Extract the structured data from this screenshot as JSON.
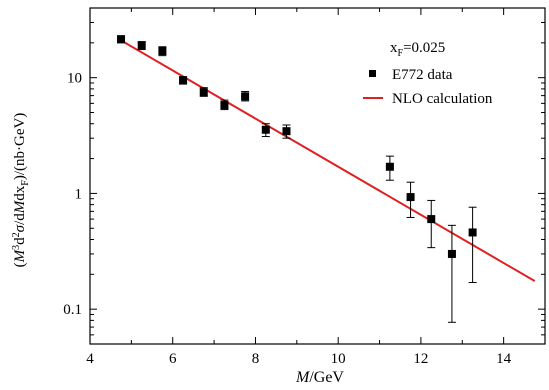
{
  "chart_data": {
    "type": "scatter",
    "title": "",
    "xlabel": "M/GeV",
    "ylabel": "(M³d²σ/dMdx_F)/(nb·GeV)",
    "xlim": [
      4,
      15
    ],
    "ylim": [
      0.05,
      40
    ],
    "yscale": "log",
    "x_ticks": [
      "4",
      "6",
      "8",
      "10",
      "12",
      "14"
    ],
    "y_ticks": [
      "0.1",
      "1",
      "10"
    ],
    "annotation": "x_F=0.025",
    "legend_position": "top-right",
    "series": [
      {
        "name": "E772 data",
        "kind": "points",
        "color": "#000000",
        "points": [
          {
            "x": 4.75,
            "y": 21.5,
            "ylo": 20.0,
            "yhi": 23.0
          },
          {
            "x": 5.25,
            "y": 19.0,
            "ylo": 17.5,
            "yhi": 20.5
          },
          {
            "x": 5.75,
            "y": 17.0,
            "ylo": 15.5,
            "yhi": 18.5
          },
          {
            "x": 6.25,
            "y": 9.5,
            "ylo": 8.8,
            "yhi": 10.2
          },
          {
            "x": 6.75,
            "y": 7.5,
            "ylo": 6.9,
            "yhi": 8.2
          },
          {
            "x": 7.25,
            "y": 5.8,
            "ylo": 5.3,
            "yhi": 6.4
          },
          {
            "x": 7.75,
            "y": 6.9,
            "ylo": 6.3,
            "yhi": 7.6
          },
          {
            "x": 8.25,
            "y": 3.55,
            "ylo": 3.1,
            "yhi": 4.0
          },
          {
            "x": 8.75,
            "y": 3.45,
            "ylo": 3.0,
            "yhi": 3.9
          },
          {
            "x": 11.25,
            "y": 1.7,
            "ylo": 1.3,
            "yhi": 2.1
          },
          {
            "x": 11.75,
            "y": 0.93,
            "ylo": 0.62,
            "yhi": 1.25
          },
          {
            "x": 12.25,
            "y": 0.6,
            "ylo": 0.34,
            "yhi": 0.87
          },
          {
            "x": 12.75,
            "y": 0.3,
            "ylo": 0.077,
            "yhi": 0.53
          },
          {
            "x": 13.25,
            "y": 0.46,
            "ylo": 0.17,
            "yhi": 0.76
          }
        ]
      },
      {
        "name": "NLO calculation",
        "kind": "line",
        "color": "#e02020",
        "x": [
          4.75,
          14.75
        ],
        "y": [
          21.0,
          0.175
        ]
      }
    ]
  }
}
